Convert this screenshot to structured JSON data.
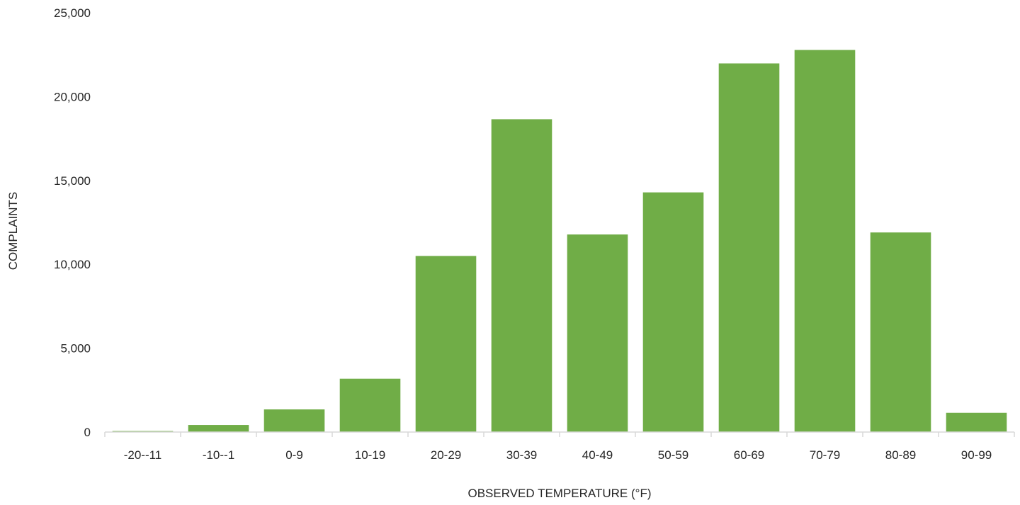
{
  "chart_data": {
    "type": "bar",
    "title": "",
    "xlabel": "OBSERVED TEMPERATURE (°F)",
    "ylabel": "COMPLAINTS",
    "categories": [
      "-20--11",
      "-10--1",
      "0-9",
      "10-19",
      "20-29",
      "30-39",
      "40-49",
      "50-59",
      "60-69",
      "70-79",
      "80-89",
      "90-99"
    ],
    "values": [
      60,
      420,
      1350,
      3180,
      10500,
      18650,
      11780,
      14290,
      21980,
      22780,
      11900,
      1150
    ],
    "ylim": [
      0,
      25000
    ],
    "yticks": [
      0,
      5000,
      10000,
      15000,
      20000,
      25000
    ],
    "ytick_labels": [
      "0",
      "5,000",
      "10,000",
      "15,000",
      "20,000",
      "25,000"
    ],
    "grid": false,
    "legend": "none",
    "bar_color": "#70ad47"
  }
}
